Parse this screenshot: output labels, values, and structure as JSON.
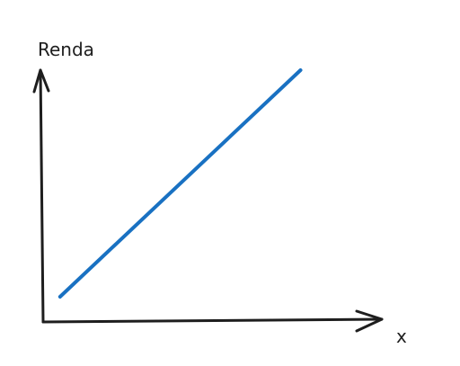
{
  "chart_data": {
    "type": "line",
    "title": "",
    "xlabel": "x",
    "ylabel": "Renda",
    "xlim": [
      0,
      1
    ],
    "ylim": [
      0,
      1
    ],
    "grid": false,
    "series": [
      {
        "color": "#1971c2",
        "x": [
          0.05,
          0.76
        ],
        "y": [
          0.1,
          1.0
        ]
      }
    ]
  }
}
